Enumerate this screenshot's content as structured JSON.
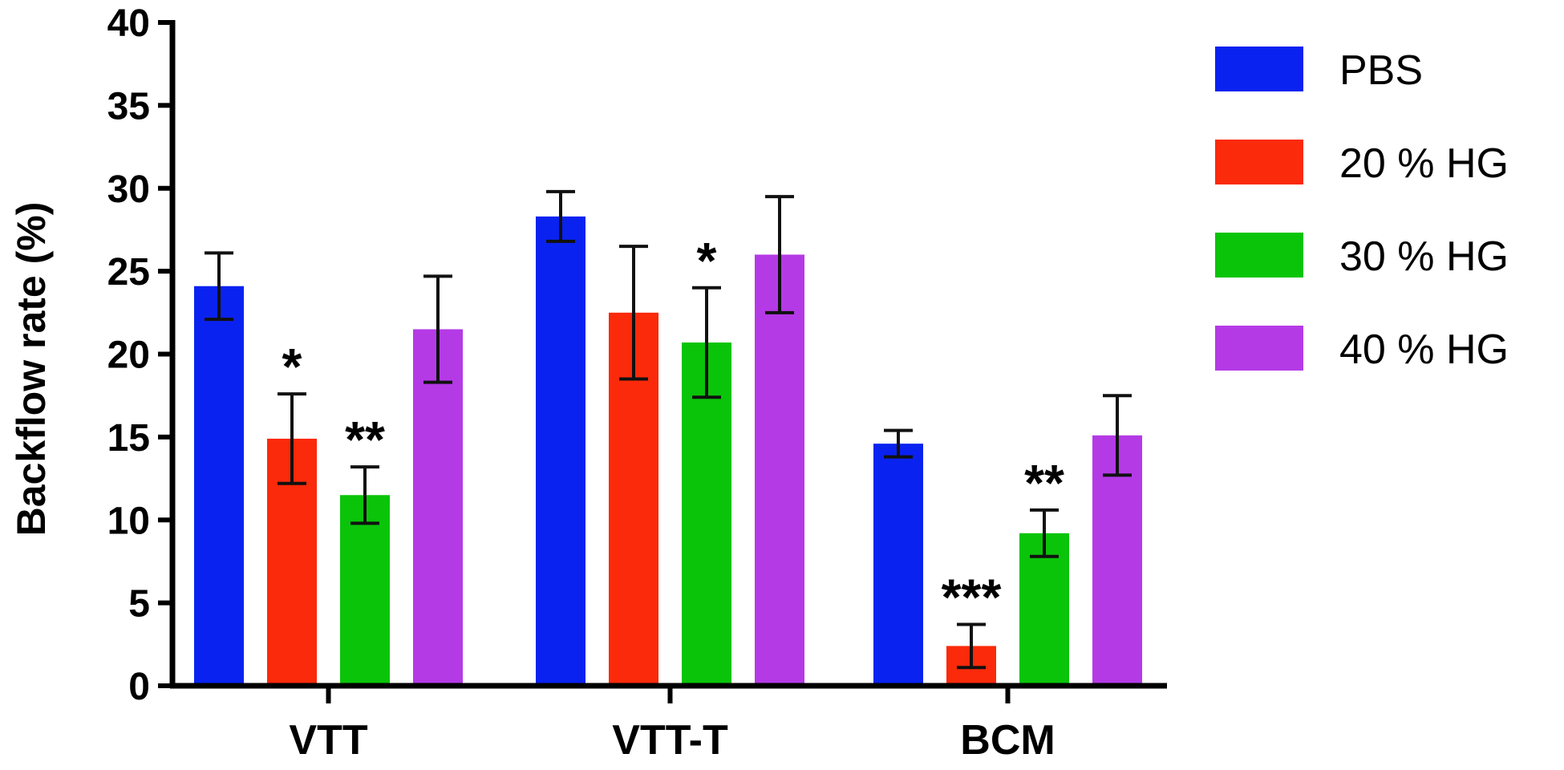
{
  "chart_data": {
    "type": "bar",
    "categories": [
      "VTT",
      "VTT-T",
      "BCM"
    ],
    "ylabel": "Backflow rate (%)",
    "xlabel": "",
    "ylim": [
      0,
      40
    ],
    "yticks": [
      0,
      5,
      10,
      15,
      20,
      25,
      30,
      35,
      40
    ],
    "legend_position": "right",
    "series": [
      {
        "name": "PBS",
        "color": "#0a22f0",
        "values": [
          24.1,
          28.3,
          14.6
        ],
        "errors": [
          2.0,
          1.5,
          0.8
        ],
        "significance": [
          "",
          "",
          ""
        ]
      },
      {
        "name": "20 % HG",
        "color": "#fa2a0a",
        "values": [
          14.9,
          22.5,
          2.4
        ],
        "errors": [
          2.7,
          4.0,
          1.3
        ],
        "significance": [
          "*",
          "",
          "***"
        ]
      },
      {
        "name": "30 % HG",
        "color": "#0ac40a",
        "values": [
          11.5,
          20.7,
          9.2
        ],
        "errors": [
          1.7,
          3.3,
          1.4
        ],
        "significance": [
          "**",
          "*",
          "**"
        ]
      },
      {
        "name": "40 % HG",
        "color": "#b43ae6",
        "values": [
          21.5,
          26.0,
          15.1
        ],
        "errors": [
          3.2,
          3.5,
          2.4
        ],
        "significance": [
          "",
          "",
          ""
        ]
      }
    ]
  }
}
